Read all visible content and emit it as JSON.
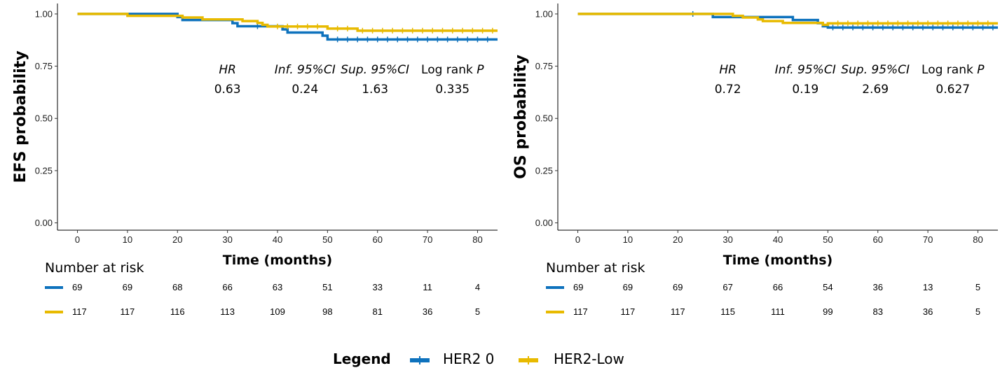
{
  "colors": {
    "her2_0": "#0E72BD",
    "her2_low": "#E8BA00"
  },
  "legend": {
    "title": "Legend",
    "items": [
      "HER2 0",
      "HER2-Low"
    ]
  },
  "chart_data": [
    {
      "type": "line",
      "subtype": "kaplan-meier",
      "ylabel": "EFS probability",
      "xlabel": "Time (months)",
      "xticks": [
        0,
        10,
        20,
        30,
        40,
        50,
        60,
        70,
        80
      ],
      "yticks": [
        "0.00",
        "0.25",
        "0.50",
        "0.75",
        "1.00"
      ],
      "xlim": [
        -4,
        84
      ],
      "ylim": [
        -0.035,
        1.05
      ],
      "grid": false,
      "stats": {
        "headers": [
          "HR",
          "Inf. 95%CI",
          "Sup. 95%CI",
          "Log rank P"
        ],
        "values": [
          "0.63",
          "0.24",
          "1.63",
          "0.335"
        ]
      },
      "series": [
        {
          "name": "HER2 0",
          "color": "#0E72BD",
          "steps": [
            [
              0,
              1
            ],
            [
              20,
              0.985
            ],
            [
              21,
              0.971
            ],
            [
              27,
              0.971
            ],
            [
              31,
              0.956
            ],
            [
              32,
              0.941
            ],
            [
              40,
              0.941
            ],
            [
              41,
              0.926
            ],
            [
              42,
              0.911
            ],
            [
              48,
              0.911
            ],
            [
              49,
              0.896
            ],
            [
              50,
              0.878
            ],
            [
              84,
              0.878
            ]
          ],
          "censors": [
            36,
            52,
            54,
            56,
            58,
            60,
            62,
            64,
            66,
            68,
            70,
            72,
            74,
            76,
            78,
            80,
            82
          ]
        },
        {
          "name": "HER2-Low",
          "color": "#E8BA00",
          "steps": [
            [
              0,
              1
            ],
            [
              10,
              0.991
            ],
            [
              20,
              0.991
            ],
            [
              21,
              0.983
            ],
            [
              25,
              0.974
            ],
            [
              33,
              0.966
            ],
            [
              36,
              0.957
            ],
            [
              37,
              0.948
            ],
            [
              38,
              0.94
            ],
            [
              49,
              0.94
            ],
            [
              50,
              0.93
            ],
            [
              55,
              0.93
            ],
            [
              56,
              0.92
            ],
            [
              84,
              0.92
            ]
          ],
          "censors": [
            40,
            42,
            44,
            46,
            48,
            52,
            54,
            57,
            59,
            61,
            63,
            65,
            67,
            69,
            71,
            73,
            75,
            77,
            79,
            81,
            83
          ]
        }
      ],
      "risk_table": {
        "title": "Number at risk",
        "times": [
          0,
          10,
          20,
          30,
          40,
          50,
          60,
          70,
          80
        ],
        "rows": [
          {
            "series": "HER2 0",
            "values": [
              "69",
              "69",
              "68",
              "66",
              "63",
              "51",
              "33",
              "11",
              "4"
            ]
          },
          {
            "series": "HER2-Low",
            "values": [
              "117",
              "117",
              "116",
              "113",
              "109",
              "98",
              "81",
              "36",
              "5"
            ]
          }
        ]
      }
    },
    {
      "type": "line",
      "subtype": "kaplan-meier",
      "ylabel": "OS probability",
      "xlabel": "Time (months)",
      "xticks": [
        0,
        10,
        20,
        30,
        40,
        50,
        60,
        70,
        80
      ],
      "yticks": [
        "0.00",
        "0.25",
        "0.50",
        "0.75",
        "1.00"
      ],
      "xlim": [
        -4,
        84
      ],
      "ylim": [
        -0.035,
        1.05
      ],
      "grid": false,
      "stats": {
        "headers": [
          "HR",
          "Inf. 95%CI",
          "Sup. 95%CI",
          "Log rank P"
        ],
        "values": [
          "0.72",
          "0.19",
          "2.69",
          "0.627"
        ]
      },
      "series": [
        {
          "name": "HER2 0",
          "color": "#0E72BD",
          "steps": [
            [
              0,
              1
            ],
            [
              27,
              0.985
            ],
            [
              39,
              0.985
            ],
            [
              40,
              0.985
            ],
            [
              42,
              0.985
            ],
            [
              43,
              0.971
            ],
            [
              48,
              0.956
            ],
            [
              49,
              0.941
            ],
            [
              50,
              0.935
            ],
            [
              84,
              0.935
            ]
          ],
          "censors": [
            23,
            51,
            53,
            55,
            57,
            59,
            61,
            63,
            65,
            67,
            69,
            71,
            73,
            75,
            77,
            79,
            81,
            83
          ]
        },
        {
          "name": "HER2-Low",
          "color": "#E8BA00",
          "steps": [
            [
              0,
              1
            ],
            [
              31,
              0.991
            ],
            [
              33,
              0.983
            ],
            [
              36,
              0.974
            ],
            [
              37,
              0.966
            ],
            [
              41,
              0.957
            ],
            [
              48,
              0.957
            ],
            [
              49,
              0.948
            ],
            [
              50,
              0.955
            ],
            [
              84,
              0.955
            ]
          ],
          "censors": [
            52,
            54,
            56,
            58,
            60,
            62,
            64,
            66,
            68,
            70,
            72,
            74,
            76,
            78,
            80,
            82
          ]
        }
      ],
      "risk_table": {
        "title": "Number at risk",
        "times": [
          0,
          10,
          20,
          30,
          40,
          50,
          60,
          70,
          80
        ],
        "rows": [
          {
            "series": "HER2 0",
            "values": [
              "69",
              "69",
              "69",
              "67",
              "66",
              "54",
              "36",
              "13",
              "5"
            ]
          },
          {
            "series": "HER2-Low",
            "values": [
              "117",
              "117",
              "117",
              "115",
              "111",
              "99",
              "83",
              "36",
              "5"
            ]
          }
        ]
      }
    }
  ]
}
